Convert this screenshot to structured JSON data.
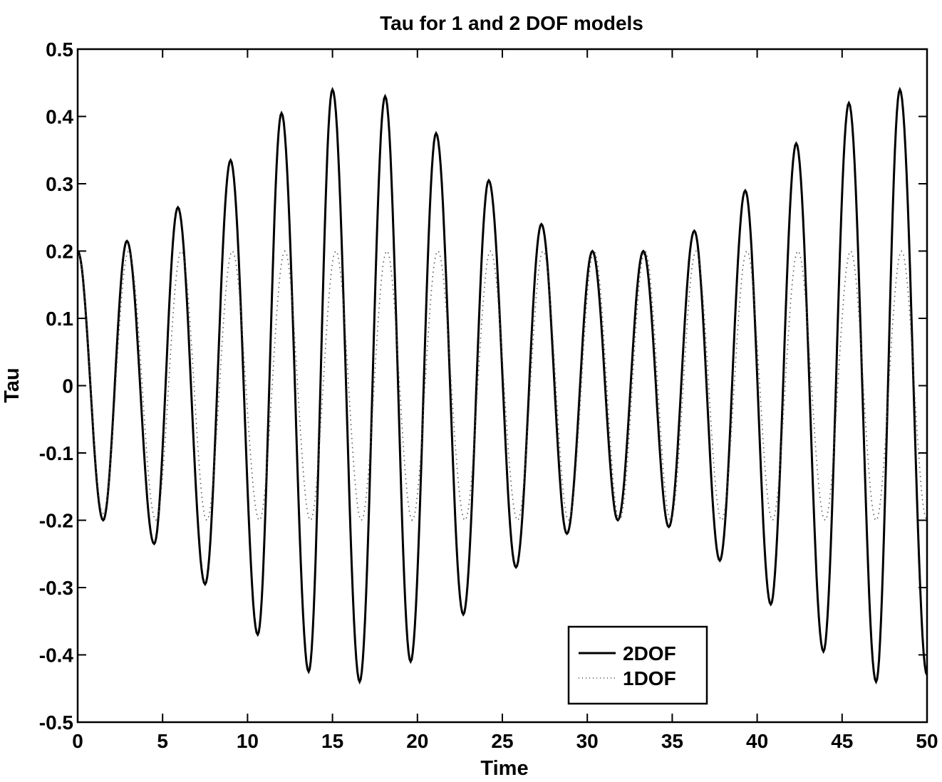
{
  "chart_data": {
    "type": "line",
    "title": "Tau for 1 and 2 DOF models",
    "xlabel": "Time",
    "ylabel": "Tau",
    "xlim": [
      0,
      50
    ],
    "ylim": [
      -0.5,
      0.5
    ],
    "xticks": [
      0,
      5,
      10,
      15,
      20,
      25,
      30,
      35,
      40,
      45,
      50
    ],
    "yticks": [
      -0.5,
      -0.4,
      -0.3,
      -0.2,
      -0.1,
      0,
      0.1,
      0.2,
      0.3,
      0.4,
      0.5
    ],
    "xtick_labels": [
      "0",
      "5",
      "10",
      "15",
      "20",
      "25",
      "30",
      "35",
      "40",
      "45",
      "50"
    ],
    "ytick_labels": [
      "-0.5",
      "-0.4",
      "-0.3",
      "-0.2",
      "-0.1",
      "0",
      "0.1",
      "0.2",
      "0.3",
      "0.4",
      "0.5"
    ],
    "grid": false,
    "legend_position": "bottom-right",
    "series": [
      {
        "name": "2DOF",
        "style": "solid",
        "color": "#000000",
        "x": [
          0,
          1.5,
          2.9,
          4.5,
          5.9,
          7.5,
          9.0,
          10.6,
          12.0,
          13.6,
          15.0,
          16.6,
          18.1,
          19.6,
          21.1,
          22.7,
          24.2,
          25.8,
          27.3,
          28.8,
          30.3,
          31.8,
          33.3,
          34.8,
          36.3,
          37.8,
          39.3,
          40.8,
          42.3,
          43.9,
          45.4,
          47.0,
          48.4,
          50
        ],
        "y": [
          0.2,
          -0.2,
          0.215,
          -0.235,
          0.265,
          -0.295,
          0.335,
          -0.37,
          0.405,
          -0.425,
          0.44,
          -0.44,
          0.43,
          -0.41,
          0.375,
          -0.34,
          0.305,
          -0.27,
          0.24,
          -0.22,
          0.2,
          -0.2,
          0.2,
          -0.21,
          0.23,
          -0.26,
          0.29,
          -0.325,
          0.36,
          -0.395,
          0.42,
          -0.44,
          0.44,
          -0.43
        ]
      },
      {
        "name": "1DOF",
        "style": "dotted",
        "color": "#000000",
        "x": [
          0,
          1.5,
          3.0,
          4.6,
          6.1,
          7.6,
          9.1,
          10.7,
          12.2,
          13.7,
          15.2,
          16.7,
          18.2,
          19.7,
          21.2,
          22.8,
          24.3,
          25.9,
          27.4,
          28.9,
          30.4,
          31.9,
          33.4,
          34.9,
          36.4,
          37.9,
          39.4,
          40.9,
          42.4,
          44.0,
          45.5,
          47.0,
          48.5,
          50
        ],
        "y": [
          0.2,
          -0.19,
          0.2,
          -0.2,
          0.2,
          -0.2,
          0.2,
          -0.2,
          0.2,
          -0.2,
          0.2,
          -0.2,
          0.2,
          -0.2,
          0.2,
          -0.2,
          0.2,
          -0.2,
          0.2,
          -0.2,
          0.2,
          -0.2,
          0.2,
          -0.2,
          0.2,
          -0.2,
          0.2,
          -0.2,
          0.2,
          -0.2,
          0.2,
          -0.2,
          0.2,
          -0.2
        ]
      }
    ]
  }
}
